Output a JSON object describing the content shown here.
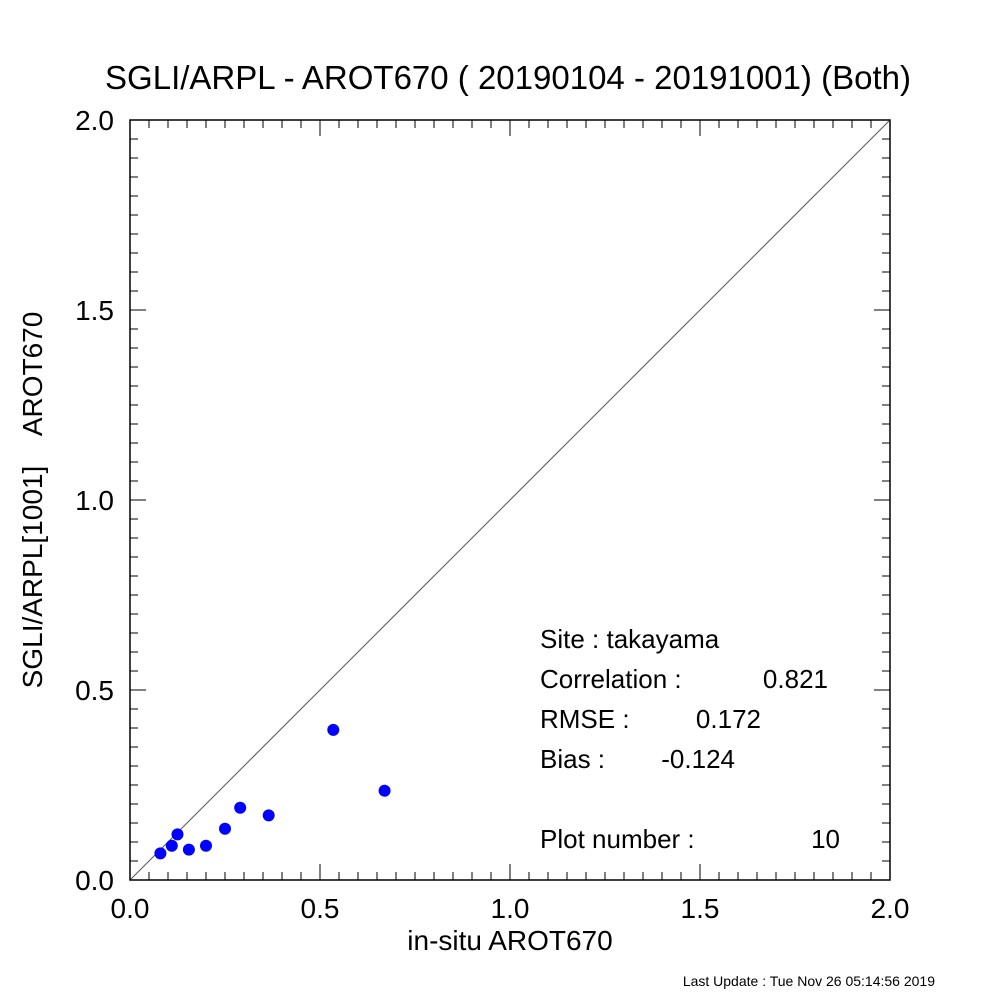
{
  "chart_data": {
    "type": "scatter",
    "title": "SGLI/ARPL - AROT670 ( 20190104 - 20191001) (Both)",
    "xlabel": "in-situ AROT670",
    "ylabel": "SGLI/ARPL[1001]    AROT670",
    "xlim": [
      0.0,
      2.0
    ],
    "ylim": [
      0.0,
      2.0
    ],
    "x_ticks": [
      "0.0",
      "0.5",
      "1.0",
      "1.5",
      "2.0"
    ],
    "y_ticks": [
      "0.0",
      "0.5",
      "1.0",
      "1.5",
      "2.0"
    ],
    "grid": false,
    "one_to_one_line": true,
    "point_color": "#0000ff",
    "line_color": "#555555",
    "points": [
      {
        "x": 0.08,
        "y": 0.07
      },
      {
        "x": 0.11,
        "y": 0.09
      },
      {
        "x": 0.125,
        "y": 0.12
      },
      {
        "x": 0.155,
        "y": 0.08
      },
      {
        "x": 0.2,
        "y": 0.09
      },
      {
        "x": 0.25,
        "y": 0.135
      },
      {
        "x": 0.29,
        "y": 0.19
      },
      {
        "x": 0.365,
        "y": 0.17
      },
      {
        "x": 0.535,
        "y": 0.395
      },
      {
        "x": 0.67,
        "y": 0.235
      }
    ],
    "stats": {
      "site": "Site : takayama",
      "correlation_label": "Correlation :",
      "correlation_value": "0.821",
      "rmse_label": "RMSE :",
      "rmse_value": "0.172",
      "bias_label": "Bias :",
      "bias_value": "-0.124",
      "plot_number_label": "Plot number :",
      "plot_number_value": "10"
    }
  },
  "footer": {
    "last_update": "Last Update : Tue Nov 26 05:14:56 2019"
  }
}
